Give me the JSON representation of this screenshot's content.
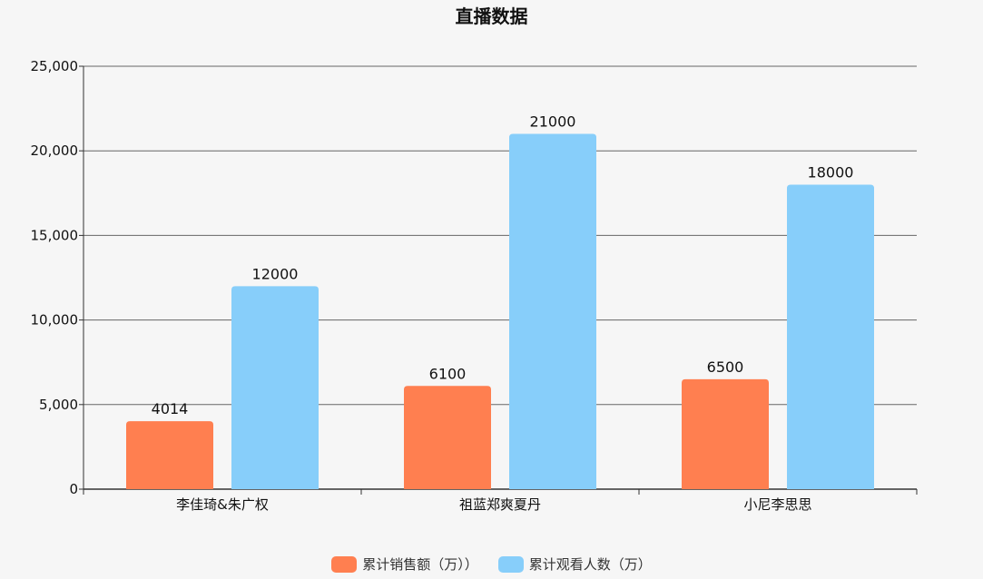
{
  "chart_data": {
    "type": "bar",
    "title": "直播数据",
    "categories": [
      "李佳琦&朱广权",
      "祖蓝郑爽夏丹",
      "小尼李思思"
    ],
    "series": [
      {
        "name": "累计销售额（万））",
        "values": [
          4014,
          6100,
          6500
        ],
        "color": "#ff7f50"
      },
      {
        "name": "累计观看人数（万）",
        "values": [
          12000,
          21000,
          18000
        ],
        "color": "#87cefa"
      }
    ],
    "ylim": [
      0,
      25000
    ],
    "yticks": [
      0,
      5000,
      10000,
      15000,
      20000,
      25000
    ],
    "ytick_labels": [
      "0",
      "5,000",
      "10,000",
      "15,000",
      "20,000",
      "25,000"
    ],
    "grid": true,
    "legend_position": "bottom-center",
    "data_labels": true
  }
}
